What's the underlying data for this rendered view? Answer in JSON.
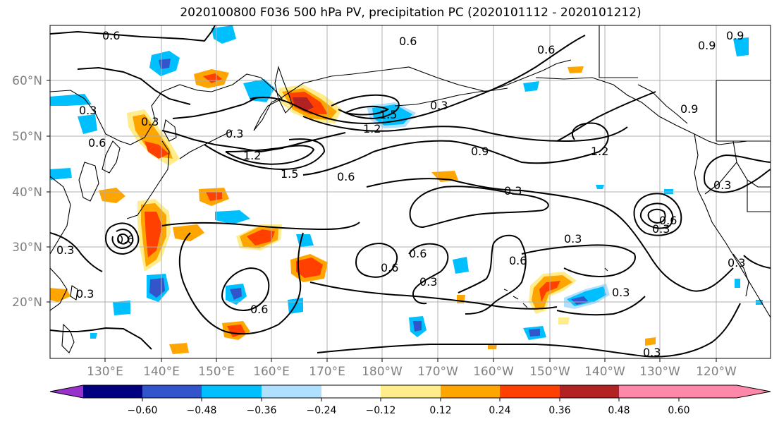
{
  "title": "2020100800 F036 500 hPa PV, precipitation PC (2020101112 - 2020101212)",
  "lat_labels": [
    "60°N",
    "50°N",
    "40°N",
    "30°N",
    "20°N"
  ],
  "lon_labels": [
    "130°E",
    "140°E",
    "150°E",
    "160°E",
    "170°E",
    "180°W",
    "170°W",
    "160°W",
    "150°W",
    "140°W",
    "130°W",
    "120°W"
  ],
  "contour_labels": [
    "0.6",
    "0.6",
    "0.6",
    "0.9",
    "0.9",
    "0.3",
    "0.3",
    "0.6",
    "0.3",
    "1.2",
    "1.5",
    "1.5",
    "1.2",
    "0.6",
    "0.9",
    "1.2",
    "0.9",
    "0.3",
    "0.3",
    "0.3",
    "0.3",
    "0.6",
    "0.6",
    "0.6",
    "0.3",
    "0.6",
    "0.3",
    "0.3",
    "0.3",
    "0.6",
    "0.6",
    "0.3",
    "0.3",
    "0.3"
  ],
  "colorbar": {
    "ticks": [
      "−0.60",
      "−0.48",
      "−0.36",
      "−0.24",
      "−0.12",
      "0.12",
      "0.24",
      "0.36",
      "0.48",
      "0.60"
    ],
    "colors": [
      "#9932cc",
      "#000080",
      "#3355cc",
      "#00bfff",
      "#b0e0ff",
      "#ffffff",
      "#ffec8b",
      "#ffa500",
      "#ff4000",
      "#b22222",
      "#ff88aa"
    ]
  },
  "colors": {
    "positive_light": "#ffec8b",
    "positive_orange": "#ffa500",
    "positive_red": "#ff4000",
    "positive_dark": "#b22222",
    "negative_light": "#b0e0ff",
    "negative_cyan": "#00bfff",
    "negative_blue": "#3355cc",
    "negative_navy": "#000080",
    "gridline": "#b0b0b0",
    "axis_label": "#808080"
  }
}
